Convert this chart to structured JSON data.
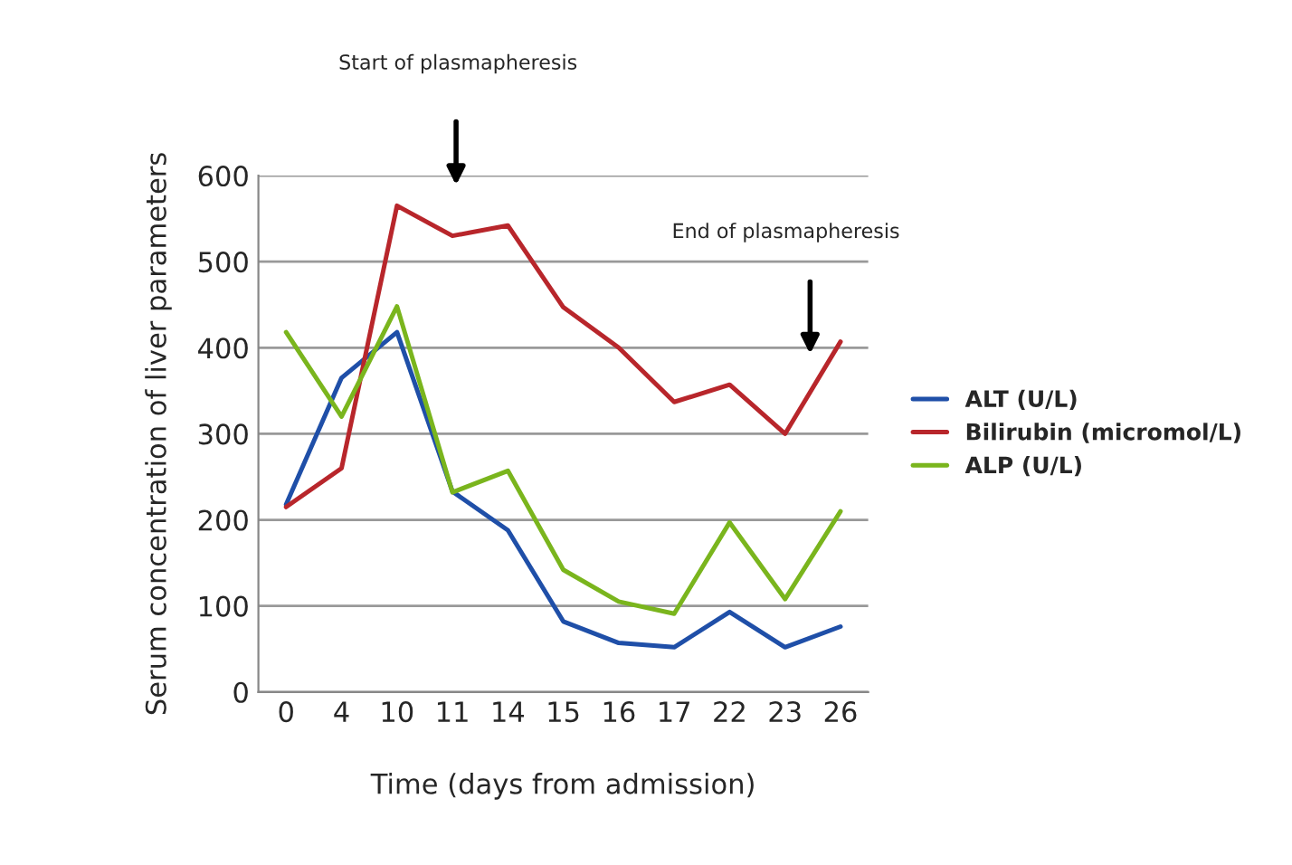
{
  "chart_data": {
    "type": "line",
    "xlabel": "Time (days from admission)",
    "ylabel": "Serum concentration of liver parameters",
    "categories": [
      "0",
      "4",
      "10",
      "11",
      "14",
      "15",
      "16",
      "17",
      "22",
      "23",
      "26"
    ],
    "series": [
      {
        "name": "ALT (U/L)",
        "color": "#1f4fa8",
        "values": [
          218,
          365,
          418,
          233,
          188,
          82,
          57,
          52,
          93,
          52,
          76
        ]
      },
      {
        "name": "Bilirubin (micromol/L)",
        "color": "#b8262b",
        "values": [
          215,
          260,
          565,
          530,
          542,
          447,
          400,
          337,
          357,
          300,
          407
        ]
      },
      {
        "name": "ALP (U/L)",
        "color": "#7ab51d",
        "values": [
          418,
          320,
          448,
          232,
          257,
          142,
          105,
          91,
          197,
          108,
          210
        ]
      }
    ],
    "ylim": [
      0,
      600
    ],
    "yticks": [
      0,
      100,
      200,
      300,
      400,
      500,
      600
    ],
    "grid": "y",
    "legend": "right",
    "marker": "none",
    "line_style": "solid",
    "annotations": [
      "Start of plasmapheresis",
      "End of plasmapheresis"
    ]
  }
}
